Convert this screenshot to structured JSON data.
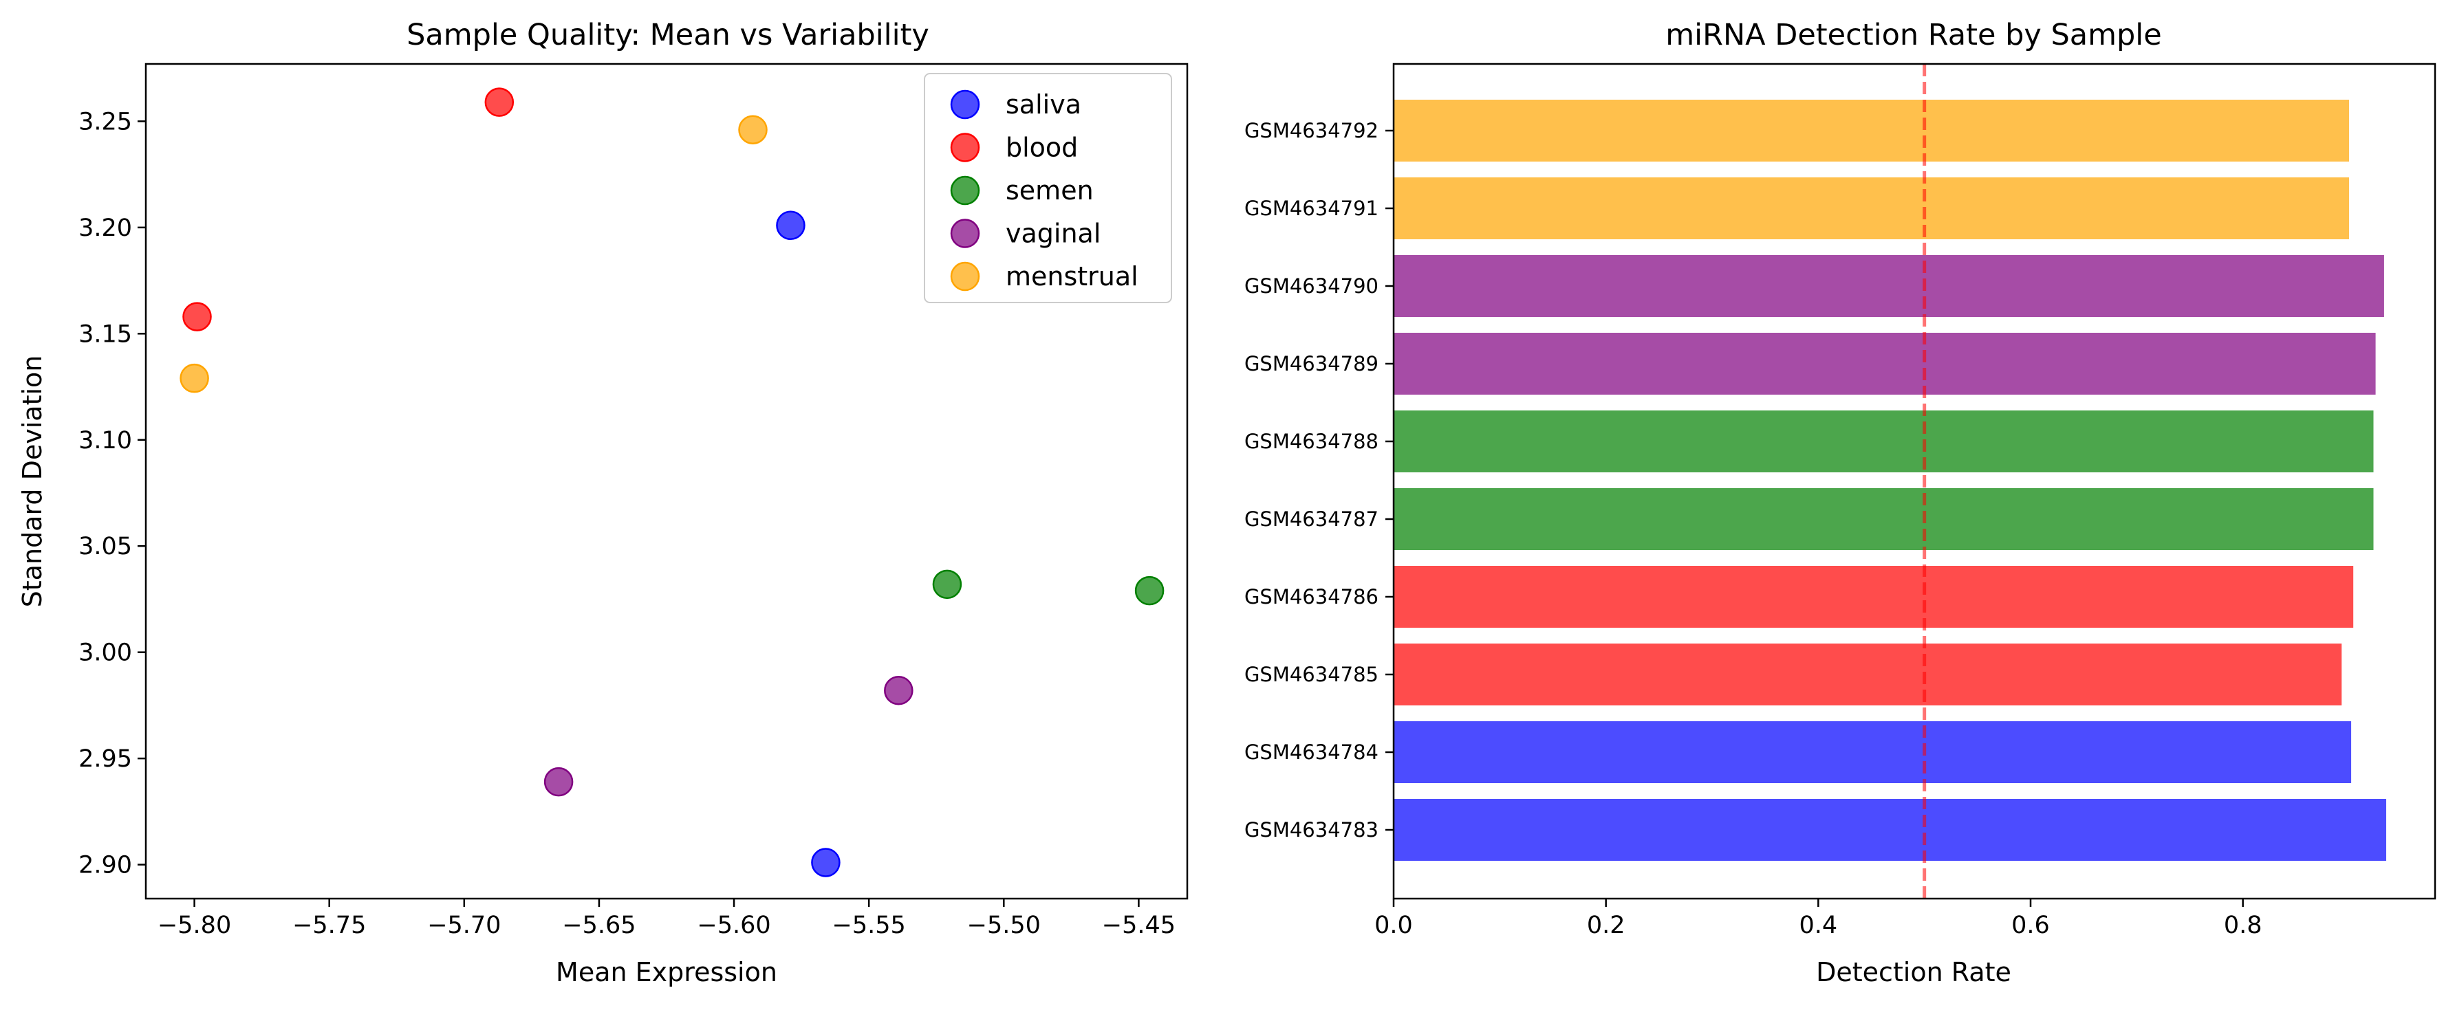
{
  "chart_data": [
    {
      "type": "scatter",
      "title": "Sample Quality: Mean vs Variability",
      "xlabel": "Mean Expression",
      "ylabel": "Standard Deviation",
      "xlim": [
        -5.818,
        -5.432
      ],
      "ylim": [
        2.884,
        3.277
      ],
      "xticks": [
        "−5.80",
        "−5.75",
        "−5.70",
        "−5.65",
        "−5.60",
        "−5.55",
        "−5.50",
        "−5.45"
      ],
      "yticks": [
        "2.90",
        "2.95",
        "3.00",
        "3.05",
        "3.10",
        "3.15",
        "3.20",
        "3.25"
      ],
      "grid": false,
      "legend_position": "top-right",
      "series": [
        {
          "name": "saliva",
          "color": "#0000ff",
          "points": [
            [
              -5.579,
              3.201
            ],
            [
              -5.566,
              2.901
            ]
          ]
        },
        {
          "name": "blood",
          "color": "#ff0000",
          "points": [
            [
              -5.687,
              3.259
            ],
            [
              -5.799,
              3.158
            ]
          ]
        },
        {
          "name": "semen",
          "color": "#008000",
          "points": [
            [
              -5.521,
              3.032
            ],
            [
              -5.446,
              3.029
            ]
          ]
        },
        {
          "name": "vaginal",
          "color": "#800080",
          "points": [
            [
              -5.539,
              2.982
            ],
            [
              -5.665,
              2.939
            ]
          ]
        },
        {
          "name": "menstrual",
          "color": "#ffa500",
          "points": [
            [
              -5.593,
              3.246
            ],
            [
              -5.8,
              3.129
            ]
          ]
        }
      ]
    },
    {
      "type": "bar",
      "orientation": "horizontal",
      "title": "miRNA Detection Rate by Sample",
      "xlabel": "Detection Rate",
      "ylabel": "",
      "xlim": [
        0,
        0.981
      ],
      "xticks": [
        "0.0",
        "0.2",
        "0.4",
        "0.6",
        "0.8"
      ],
      "threshold": {
        "value": 0.5,
        "color": "#ff0000",
        "style": "dashed"
      },
      "grid": false,
      "categories": [
        "GSM4634783",
        "GSM4634784",
        "GSM4634785",
        "GSM4634786",
        "GSM4634787",
        "GSM4634788",
        "GSM4634789",
        "GSM4634790",
        "GSM4634791",
        "GSM4634792"
      ],
      "values": [
        0.935,
        0.902,
        0.893,
        0.904,
        0.923,
        0.923,
        0.925,
        0.933,
        0.9,
        0.9
      ],
      "colors": [
        "#0000ff",
        "#0000ff",
        "#ff0000",
        "#ff0000",
        "#008000",
        "#008000",
        "#800080",
        "#800080",
        "#ffa500",
        "#ffa500"
      ]
    }
  ]
}
